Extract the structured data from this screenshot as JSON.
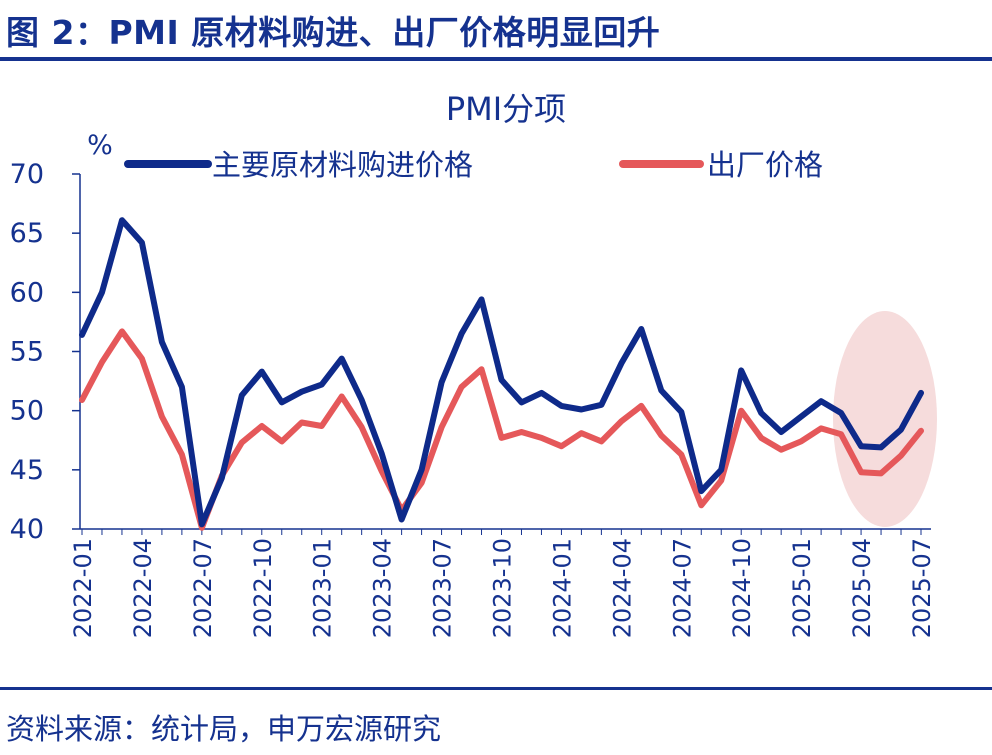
{
  "figure_title": "图 2：PMI 原材料购进、出厂价格明显回升",
  "source": "资料来源：统计局，申万宏源研究",
  "colors": {
    "brand": "#15328f",
    "series1": "#0e2a8a",
    "series2": "#e5585a",
    "highlight": "#f6dcdc"
  },
  "chart_data": {
    "type": "line",
    "title": "PMI分项",
    "ylabel": "%",
    "ylim": [
      40,
      70
    ],
    "yticks": [
      40,
      45,
      50,
      55,
      60,
      65,
      70
    ],
    "x": [
      "2022-01",
      "2022-02",
      "2022-03",
      "2022-04",
      "2022-05",
      "2022-06",
      "2022-07",
      "2022-08",
      "2022-09",
      "2022-10",
      "2022-11",
      "2022-12",
      "2023-01",
      "2023-02",
      "2023-03",
      "2023-04",
      "2023-05",
      "2023-06",
      "2023-07",
      "2023-08",
      "2023-09",
      "2023-10",
      "2023-11",
      "2023-12",
      "2024-01",
      "2024-02",
      "2024-03",
      "2024-04",
      "2024-05",
      "2024-06",
      "2024-07",
      "2024-08",
      "2024-09",
      "2024-10",
      "2024-11",
      "2024-12",
      "2025-01",
      "2025-02",
      "2025-03",
      "2025-04",
      "2025-05",
      "2025-06",
      "2025-07"
    ],
    "xticks": [
      "2022-01",
      "2022-04",
      "2022-07",
      "2022-10",
      "2023-01",
      "2023-04",
      "2023-07",
      "2023-10",
      "2024-01",
      "2024-04",
      "2024-07",
      "2024-10",
      "2025-01",
      "2025-04",
      "2025-07"
    ],
    "legend_position": "top",
    "grid": false,
    "series": [
      {
        "name": "主要原材料购进价格",
        "values": [
          56.4,
          60.0,
          66.1,
          64.2,
          55.8,
          52.0,
          40.4,
          44.3,
          51.3,
          53.3,
          50.7,
          51.6,
          52.2,
          54.4,
          50.9,
          46.4,
          40.8,
          45.0,
          52.4,
          56.5,
          59.4,
          52.6,
          50.7,
          51.5,
          50.4,
          50.1,
          50.5,
          54.0,
          56.9,
          51.7,
          49.9,
          43.2,
          45.0,
          53.4,
          49.8,
          48.2,
          49.5,
          50.8,
          49.8,
          47.0,
          46.9,
          48.4,
          51.5
        ]
      },
      {
        "name": "出厂价格",
        "values": [
          50.9,
          54.1,
          56.7,
          54.4,
          49.5,
          46.3,
          40.1,
          44.5,
          47.3,
          48.7,
          47.4,
          49.0,
          48.7,
          51.2,
          48.6,
          44.9,
          41.6,
          43.9,
          48.6,
          52.0,
          53.5,
          47.7,
          48.2,
          47.7,
          47.0,
          48.1,
          47.4,
          49.1,
          50.4,
          47.9,
          46.3,
          42.0,
          44.1,
          50.0,
          47.7,
          46.7,
          47.4,
          48.5,
          48.0,
          44.8,
          44.7,
          46.2,
          48.3
        ]
      }
    ]
  }
}
